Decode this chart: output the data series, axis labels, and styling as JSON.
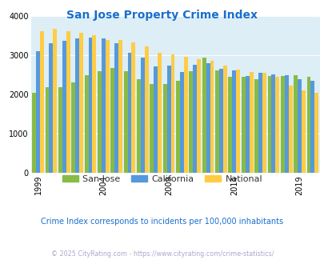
{
  "title": "San Jose Property Crime Index",
  "title_color": "#1a6fcc",
  "subtitle": "Crime Index corresponds to incidents per 100,000 inhabitants",
  "subtitle_color": "#1a6fcc",
  "footer": "© 2025 CityRating.com - https://www.cityrating.com/crime-statistics/",
  "footer_color": "#aaaacc",
  "years": [
    1999,
    2000,
    2001,
    2002,
    2003,
    2004,
    2005,
    2006,
    2007,
    2008,
    2009,
    2010,
    2011,
    2012,
    2013,
    2014,
    2015,
    2016,
    2017,
    2018,
    2019,
    2020
  ],
  "san_jose": [
    2050,
    2190,
    2180,
    2300,
    2490,
    2600,
    2670,
    2600,
    2380,
    2260,
    2270,
    2340,
    2590,
    2930,
    2620,
    2450,
    2450,
    2390,
    2460,
    2460,
    2480,
    2440
  ],
  "california": [
    3100,
    3310,
    3360,
    3420,
    3440,
    3430,
    3310,
    3050,
    2940,
    2720,
    2730,
    2580,
    2760,
    2800,
    2650,
    2620,
    2460,
    2540,
    2500,
    2480,
    2380,
    2350
  ],
  "national": [
    3610,
    3660,
    3610,
    3570,
    3510,
    3390,
    3380,
    3330,
    3220,
    3050,
    3020,
    2960,
    2900,
    2860,
    2730,
    2640,
    2580,
    2540,
    2450,
    2220,
    2110,
    2050
  ],
  "sj_color": "#88bb44",
  "ca_color": "#5599dd",
  "nat_color": "#ffcc44",
  "plot_bg": "#ddeef6",
  "ylim": [
    0,
    4000
  ],
  "yticks": [
    0,
    1000,
    2000,
    3000,
    4000
  ],
  "xtick_years": [
    1999,
    2004,
    2009,
    2014,
    2019
  ],
  "bar_width": 0.3,
  "legend_labels": [
    "San Jose",
    "California",
    "National"
  ]
}
